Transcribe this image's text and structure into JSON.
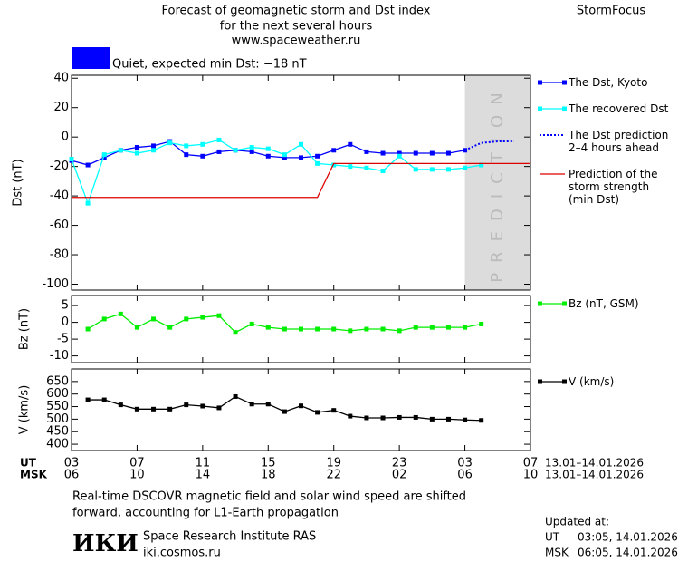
{
  "header": {
    "title_lines": [
      "Forecast of geomagnetic storm and Dst index",
      "for the next several hours",
      "www.spaceweather.ru"
    ],
    "brand": "StormFocus"
  },
  "status": {
    "color": "#0000ff",
    "text": "Quiet, expected min Dst: −18 nT"
  },
  "chart_data": [
    {
      "type": "line",
      "y_label": "Dst (nT)",
      "xlim": [
        0,
        28
      ],
      "ylim": [
        -104,
        42
      ],
      "yticks": [
        40,
        20,
        0,
        -20,
        -40,
        -60,
        -80,
        -100
      ],
      "prediction_region": [
        24,
        28
      ],
      "prediction_label": "PREDICTION",
      "legend": "right",
      "series": [
        {
          "name": "The Dst, Kyoto",
          "color": "#0000ff",
          "marker": "square",
          "linestyle": "solid",
          "x": [
            0,
            1,
            2,
            3,
            4,
            5,
            6,
            7,
            8,
            9,
            10,
            11,
            12,
            13,
            14,
            15,
            16,
            17,
            18,
            19,
            20,
            21,
            22,
            23,
            24
          ],
          "values": [
            -16,
            -19,
            -14,
            -9,
            -7,
            -6,
            -3,
            -12,
            -13,
            -10,
            -9,
            -10,
            -13,
            -14,
            -14,
            -13,
            -9,
            -5,
            -10,
            -11,
            -11,
            -11,
            -11,
            -11,
            -9
          ]
        },
        {
          "name": "The recovered Dst",
          "color": "#00ffff",
          "marker": "square",
          "linestyle": "solid",
          "x": [
            0,
            1,
            2,
            3,
            4,
            5,
            6,
            7,
            8,
            9,
            10,
            11,
            12,
            13,
            14,
            15,
            16,
            17,
            18,
            19,
            20,
            21,
            22,
            23,
            24,
            25
          ],
          "values": [
            -15,
            -45,
            -12,
            -9,
            -11,
            -9,
            -4,
            -6,
            -5,
            -2,
            -9,
            -7,
            -8,
            -12,
            -5,
            -18,
            -19,
            -20,
            -21,
            -23,
            -13,
            -22,
            -22,
            -22,
            -21,
            -19
          ]
        },
        {
          "name": "The Dst prediction\n2–4 hours ahead",
          "color": "#0000ff",
          "marker": "none",
          "linestyle": "dotted",
          "x": [
            24,
            25,
            26,
            27
          ],
          "values": [
            -9,
            -4,
            -3,
            -3
          ]
        },
        {
          "name": "Prediction of the\nstorm strength\n(min Dst)",
          "color": "#dd0000",
          "marker": "none",
          "linestyle": "solid",
          "x": [
            0,
            15,
            16,
            28
          ],
          "values": [
            -41,
            -41,
            -18,
            -18
          ]
        }
      ]
    },
    {
      "type": "line",
      "y_label": "Bz (nT)",
      "xlim": [
        0,
        28
      ],
      "ylim": [
        -12,
        8
      ],
      "yticks": [
        5,
        0,
        -5,
        -10
      ],
      "legend": "right",
      "series": [
        {
          "name": "Bz (nT, GSM)",
          "color": "#00ee00",
          "marker": "square",
          "linestyle": "solid",
          "x": [
            1,
            2,
            3,
            4,
            5,
            6,
            7,
            8,
            9,
            10,
            11,
            12,
            13,
            14,
            15,
            16,
            17,
            18,
            19,
            20,
            21,
            22,
            23,
            24,
            25
          ],
          "values": [
            -2,
            1,
            2.5,
            -1.5,
            1,
            -1.5,
            1,
            1.5,
            2,
            -3,
            -0.5,
            -1.5,
            -2,
            -2,
            -2,
            -2,
            -2.5,
            -2,
            -2,
            -2.5,
            -1.5,
            -1.5,
            -1.5,
            -1.5,
            -0.5
          ]
        }
      ]
    },
    {
      "type": "line",
      "y_label": "V (km/s)",
      "xlim": [
        0,
        28
      ],
      "ylim": [
        375,
        700
      ],
      "yticks": [
        650,
        600,
        550,
        500,
        450,
        400
      ],
      "legend": "right",
      "x_label": "UT",
      "x2_label": "MSK",
      "xticks": [
        {
          "value": 0,
          "label": "03"
        },
        {
          "value": 4,
          "label": "07"
        },
        {
          "value": 8,
          "label": "11"
        },
        {
          "value": 12,
          "label": "15"
        },
        {
          "value": 16,
          "label": "19"
        },
        {
          "value": 20,
          "label": "23"
        },
        {
          "value": 24,
          "label": "03"
        },
        {
          "value": 28,
          "label": "07"
        }
      ],
      "x2ticks": [
        {
          "value": 0,
          "label": "06"
        },
        {
          "value": 4,
          "label": "10"
        },
        {
          "value": 8,
          "label": "14"
        },
        {
          "value": 12,
          "label": "18"
        },
        {
          "value": 16,
          "label": "22"
        },
        {
          "value": 20,
          "label": "02"
        },
        {
          "value": 24,
          "label": "06"
        },
        {
          "value": 28,
          "label": "10"
        }
      ],
      "x_range": "13.01–14.01.2026",
      "x2_range": "13.01–14.01.2026",
      "series": [
        {
          "name": "V (km/s)",
          "color": "#000000",
          "marker": "square",
          "linestyle": "solid",
          "x": [
            1,
            2,
            3,
            4,
            5,
            6,
            7,
            8,
            9,
            10,
            11,
            12,
            13,
            14,
            15,
            16,
            17,
            18,
            19,
            20,
            21,
            22,
            23,
            24,
            25
          ],
          "values": [
            577,
            577,
            557,
            540,
            540,
            540,
            557,
            552,
            545,
            590,
            560,
            560,
            530,
            553,
            527,
            535,
            512,
            505,
            505,
            507,
            507,
            500,
            500,
            497,
            495
          ]
        }
      ]
    }
  ],
  "footer": {
    "note_lines": [
      "Real-time DSCOVR magnetic field and solar wind speed are shifted",
      "forward, accounting for L1-Earth propagation"
    ],
    "logo": "ИКИ",
    "institute": "Space Research Institute RAS",
    "site": "iki.cosmos.ru",
    "updated_label": "Updated at:",
    "updated_ut_label": "UT",
    "updated_ut": "03:05, 14.01.2026",
    "updated_msk_label": "MSK",
    "updated_msk": "06:05, 14.01.2026"
  }
}
